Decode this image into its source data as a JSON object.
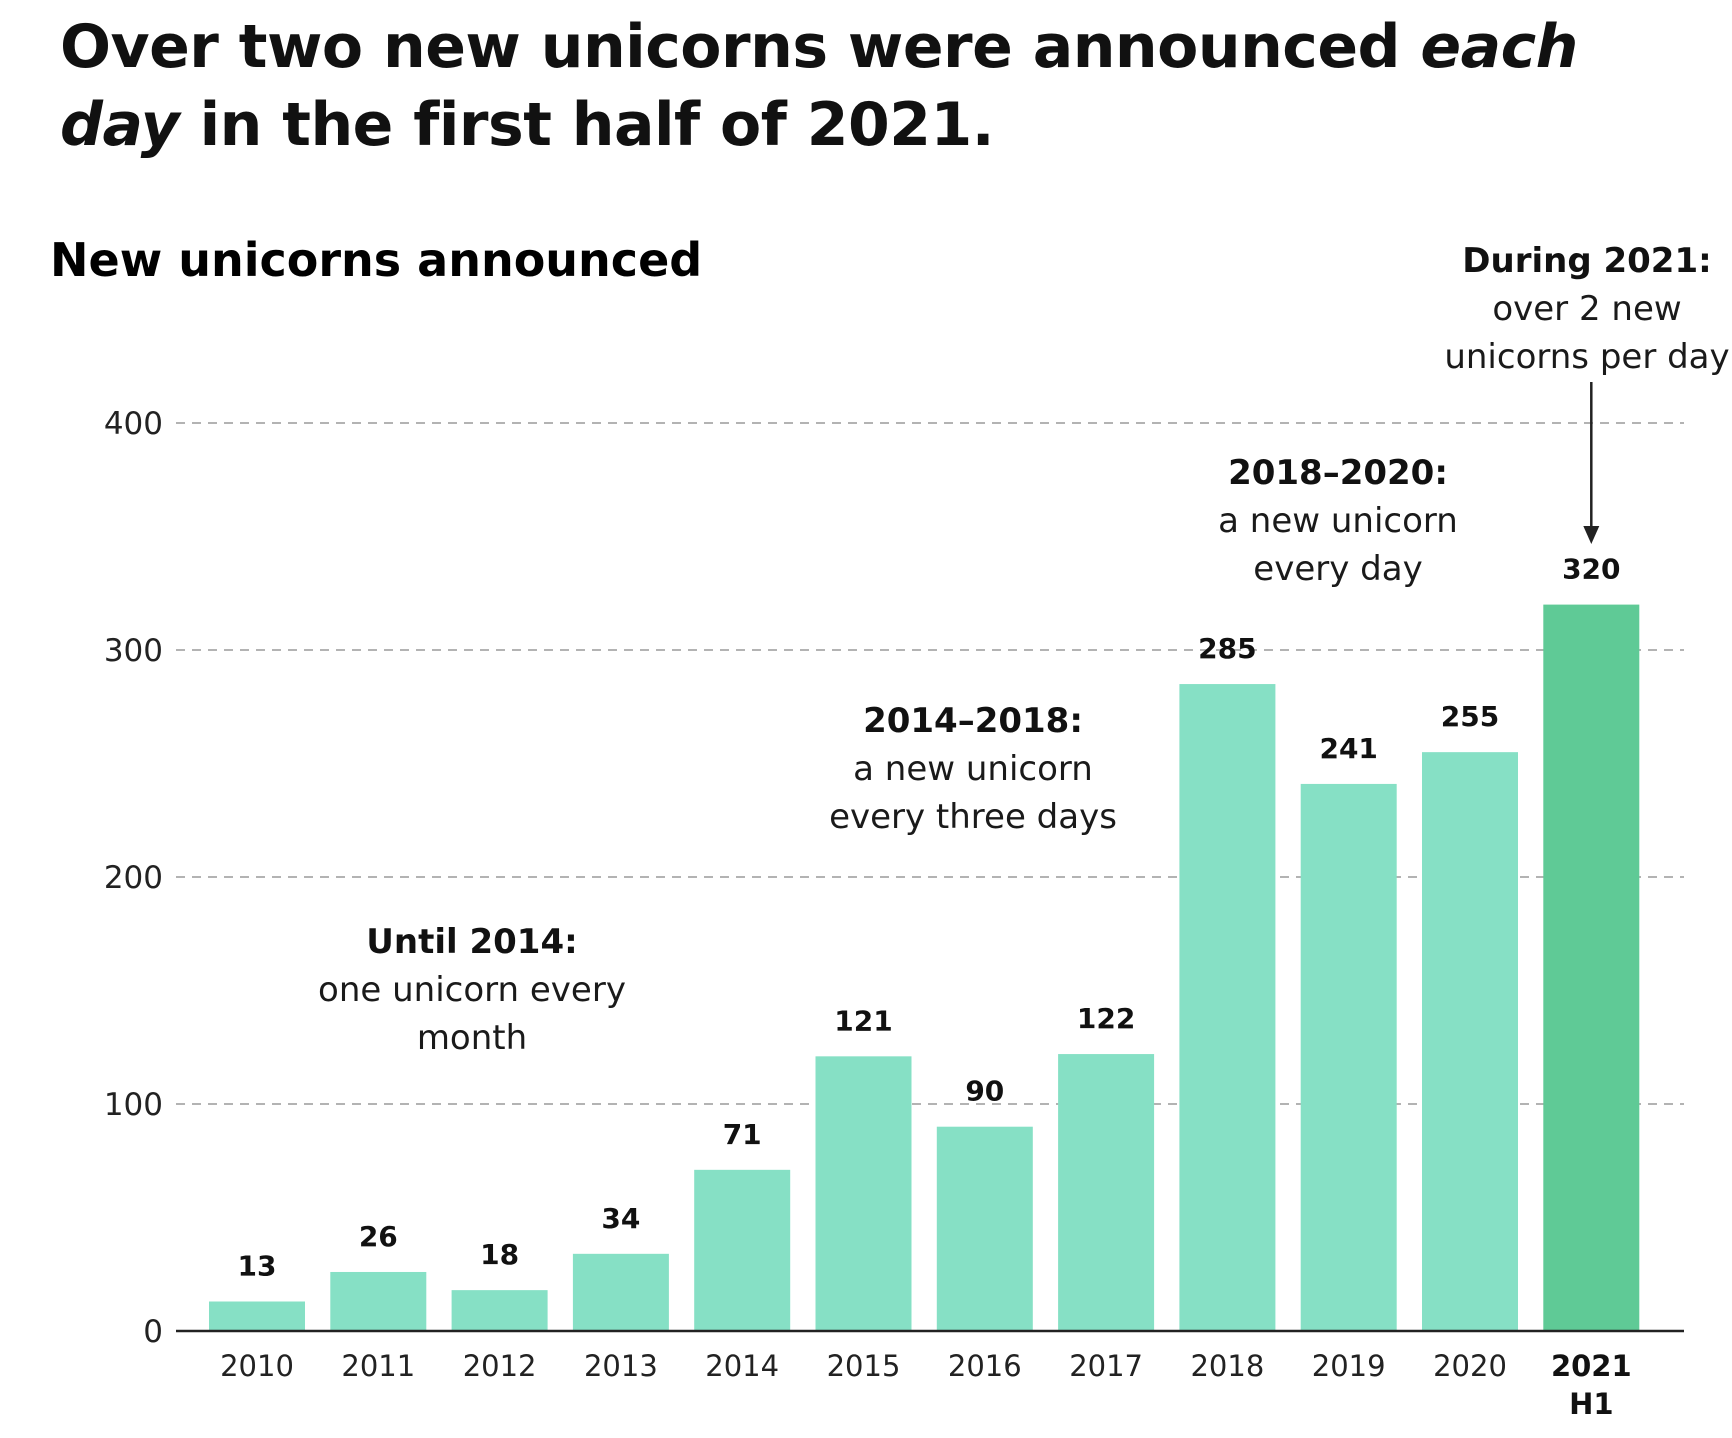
{
  "headline": {
    "part1": "Over two new unicorns were announced ",
    "emphasis": "each day",
    "part2": " in the first half of 2021."
  },
  "colors": {
    "bar": "#86e0c5",
    "bar_highlight": "#5fca96",
    "grid": "#b3b3b3",
    "axis": "#222222"
  },
  "chart_data": {
    "type": "bar",
    "title": "New unicorns announced",
    "categories": [
      "2010",
      "2011",
      "2012",
      "2013",
      "2014",
      "2015",
      "2016",
      "2017",
      "2018",
      "2019",
      "2020",
      "2021 H1"
    ],
    "category_lines": [
      [
        "2010"
      ],
      [
        "2011"
      ],
      [
        "2012"
      ],
      [
        "2013"
      ],
      [
        "2014"
      ],
      [
        "2015"
      ],
      [
        "2016"
      ],
      [
        "2017"
      ],
      [
        "2018"
      ],
      [
        "2019"
      ],
      [
        "2020"
      ],
      [
        "2021",
        "H1"
      ]
    ],
    "values": [
      13,
      26,
      18,
      34,
      71,
      121,
      90,
      122,
      285,
      241,
      255,
      320
    ],
    "highlight": "2021 H1",
    "ylim": [
      0,
      400
    ],
    "yticks": [
      0,
      100,
      200,
      300,
      400
    ],
    "grid": true,
    "xlabel": "",
    "ylabel": "",
    "annotations": [
      {
        "id": "until-2014",
        "heading": "Until 2014:",
        "lines": [
          "one unicorn every",
          "month"
        ]
      },
      {
        "id": "2014-2018",
        "heading": "2014–2018:",
        "lines": [
          "a new unicorn",
          "every three days"
        ]
      },
      {
        "id": "2018-2020",
        "heading": "2018–2020:",
        "lines": [
          "a new unicorn",
          "every day"
        ]
      },
      {
        "id": "during-2021",
        "heading": "During 2021:",
        "lines": [
          "over 2 new",
          "unicorns per day"
        ],
        "arrow_to": "2021 H1"
      }
    ]
  }
}
